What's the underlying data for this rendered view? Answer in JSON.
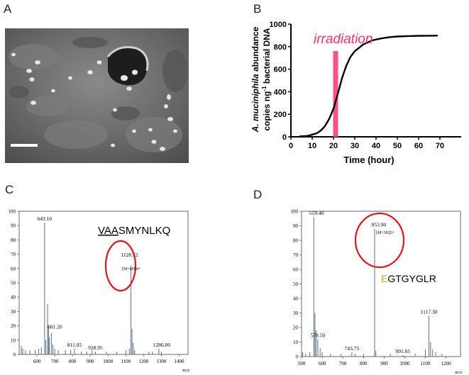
{
  "panels": {
    "A": {
      "letter": "A"
    },
    "B": {
      "letter": "B",
      "annotation": "irradiation",
      "ylabel_italic": "A. muciniphila",
      "ylabel_rest1": " abundance",
      "ylabel_line2_pre": "copies ng",
      "ylabel_line2_sup": "-1",
      "ylabel_line2_post": " bacterial DNA",
      "xlabel": "Time (hour)",
      "accent_color": "#ff4f87",
      "annotation_color": "#ff2f6e"
    },
    "C": {
      "letter": "C",
      "peptide_underlined": "VAA",
      "peptide_rest": "SMYNLKQ",
      "circle_color": "#e8141c",
      "ion": "[M+4H]4+"
    },
    "D": {
      "letter": "D",
      "peptide_first": "E",
      "peptide_rest": "GTGYGLR",
      "first_color": "#e0a020",
      "circle_color": "#e8141c",
      "ion": "[M+3H]3+"
    }
  },
  "chart_data": [
    {
      "type": "line",
      "panel": "B",
      "title": "",
      "xlabel": "Time (hour)",
      "ylabel": "A. muciniphila abundance copies ng-1 bacterial DNA",
      "xlim": [
        0,
        80
      ],
      "ylim": [
        0,
        1000
      ],
      "xticks": [
        0,
        10,
        20,
        30,
        40,
        50,
        60,
        70
      ],
      "yticks": [
        0,
        200,
        400,
        600,
        800,
        1000
      ],
      "highlight_x": 21,
      "x": [
        4,
        8,
        12,
        14,
        16,
        18,
        20,
        22,
        24,
        26,
        28,
        30,
        34,
        38,
        42,
        46,
        50,
        55,
        60,
        65,
        69
      ],
      "y": [
        3,
        8,
        30,
        55,
        95,
        160,
        250,
        380,
        520,
        630,
        710,
        760,
        820,
        855,
        872,
        883,
        890,
        894,
        896,
        897,
        898
      ]
    },
    {
      "type": "bar",
      "panel": "C",
      "xlabel": "m/z",
      "xlim": [
        500,
        1450
      ],
      "ylim": [
        0,
        100
      ],
      "xticks": [
        600,
        700,
        800,
        900,
        1000,
        1100,
        1200,
        1300,
        1400
      ],
      "yticks": [
        0,
        10,
        20,
        30,
        40,
        50,
        60,
        70,
        80,
        90,
        100
      ],
      "peaks": [
        {
          "x": 512,
          "y": 6
        },
        {
          "x": 520,
          "y": 4
        },
        {
          "x": 535,
          "y": 3
        },
        {
          "x": 560,
          "y": 3
        },
        {
          "x": 590,
          "y": 3
        },
        {
          "x": 610,
          "y": 4
        },
        {
          "x": 625,
          "y": 5
        },
        {
          "x": 643.1,
          "y": 92,
          "label": "643.10"
        },
        {
          "x": 650,
          "y": 10
        },
        {
          "x": 660,
          "y": 35
        },
        {
          "x": 665,
          "y": 20
        },
        {
          "x": 670,
          "y": 12
        },
        {
          "x": 681.2,
          "y": 15,
          "label": "681.20"
        },
        {
          "x": 690,
          "y": 7
        },
        {
          "x": 700,
          "y": 4
        },
        {
          "x": 720,
          "y": 3
        },
        {
          "x": 760,
          "y": 3
        },
        {
          "x": 790,
          "y": 3
        },
        {
          "x": 811.05,
          "y": 4,
          "label": "811.05"
        },
        {
          "x": 850,
          "y": 2
        },
        {
          "x": 880,
          "y": 2
        },
        {
          "x": 910,
          "y": 3
        },
        {
          "x": 928.95,
          "y": 2,
          "label": "928.95"
        },
        {
          "x": 990,
          "y": 2
        },
        {
          "x": 1050,
          "y": 2
        },
        {
          "x": 1100,
          "y": 3
        },
        {
          "x": 1120,
          "y": 4
        },
        {
          "x": 1128.32,
          "y": 62,
          "label": "1128.32"
        },
        {
          "x": 1135,
          "y": 18
        },
        {
          "x": 1142,
          "y": 8
        },
        {
          "x": 1150,
          "y": 3
        },
        {
          "x": 1230,
          "y": 2
        },
        {
          "x": 1250,
          "y": 2
        },
        {
          "x": 1286.0,
          "y": 4,
          "label": "1286.00"
        },
        {
          "x": 1300,
          "y": 2
        }
      ]
    },
    {
      "type": "bar",
      "panel": "D",
      "xlabel": "m/z",
      "xlim": [
        500,
        1270
      ],
      "ylim": [
        0,
        100
      ],
      "xticks": [
        500,
        600,
        700,
        800,
        900,
        1000,
        1100,
        1200
      ],
      "yticks": [
        0,
        10,
        20,
        30,
        40,
        50,
        60,
        70,
        80,
        90,
        100
      ],
      "peaks": [
        {
          "x": 505,
          "y": 3
        },
        {
          "x": 520,
          "y": 2
        },
        {
          "x": 540,
          "y": 3
        },
        {
          "x": 559.4,
          "y": 96,
          "label": "559.40"
        },
        {
          "x": 565,
          "y": 30
        },
        {
          "x": 570,
          "y": 18
        },
        {
          "x": 578.5,
          "y": 12,
          "label": "578.50"
        },
        {
          "x": 590,
          "y": 6
        },
        {
          "x": 600,
          "y": 3
        },
        {
          "x": 640,
          "y": 2
        },
        {
          "x": 690,
          "y": 2
        },
        {
          "x": 743.75,
          "y": 3,
          "label": "743.75"
        },
        {
          "x": 760,
          "y": 2
        },
        {
          "x": 800,
          "y": 2
        },
        {
          "x": 853.9,
          "y": 88,
          "label": "853.90"
        },
        {
          "x": 860,
          "y": 4
        },
        {
          "x": 930,
          "y": 2
        },
        {
          "x": 991.05,
          "y": 1,
          "label": "991.05"
        },
        {
          "x": 1050,
          "y": 2
        },
        {
          "x": 1100,
          "y": 5
        },
        {
          "x": 1117.3,
          "y": 28,
          "label": "1117.30"
        },
        {
          "x": 1125,
          "y": 10
        },
        {
          "x": 1135,
          "y": 5
        },
        {
          "x": 1150,
          "y": 3
        },
        {
          "x": 1180,
          "y": 2
        }
      ]
    }
  ]
}
